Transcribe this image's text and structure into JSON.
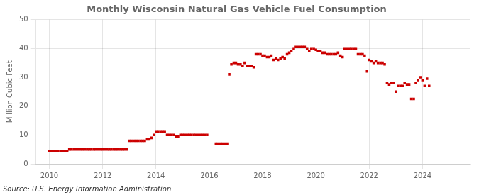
{
  "chart_data": {
    "type": "scatter",
    "title": "Monthly Wisconsin Natural Gas Vehicle Fuel Consumption",
    "ylabel": "Million Cubic Feet",
    "annotations": [
      "Source: U.S. Energy Information Administration"
    ],
    "color": "#CC0000",
    "marker": "square",
    "grid": true,
    "xlim": [
      2009.5,
      2025.8
    ],
    "xticks": [
      2010,
      2012,
      2014,
      2016,
      2018,
      2020,
      2022,
      2024
    ],
    "ylim": [
      0,
      50
    ],
    "yticks": [
      0,
      10,
      20,
      30,
      40,
      50
    ],
    "x": [
      2010.0,
      2010.08,
      2010.17,
      2010.25,
      2010.33,
      2010.42,
      2010.5,
      2010.58,
      2010.67,
      2010.75,
      2010.83,
      2010.92,
      2011.0,
      2011.08,
      2011.17,
      2011.25,
      2011.33,
      2011.42,
      2011.5,
      2011.58,
      2011.67,
      2011.75,
      2011.83,
      2011.92,
      2012.0,
      2012.08,
      2012.17,
      2012.25,
      2012.33,
      2012.42,
      2012.5,
      2012.58,
      2012.67,
      2012.75,
      2012.83,
      2012.92,
      2013.0,
      2013.08,
      2013.17,
      2013.25,
      2013.33,
      2013.42,
      2013.5,
      2013.58,
      2013.67,
      2013.75,
      2013.83,
      2013.92,
      2014.0,
      2014.08,
      2014.17,
      2014.25,
      2014.33,
      2014.42,
      2014.5,
      2014.58,
      2014.67,
      2014.75,
      2014.83,
      2014.92,
      2015.0,
      2015.08,
      2015.17,
      2015.25,
      2015.33,
      2015.42,
      2015.5,
      2015.58,
      2015.67,
      2015.75,
      2015.83,
      2015.92,
      2016.25,
      2016.33,
      2016.42,
      2016.5,
      2016.58,
      2016.67,
      2016.75,
      2016.83,
      2016.92,
      2017.0,
      2017.08,
      2017.17,
      2017.25,
      2017.33,
      2017.42,
      2017.5,
      2017.58,
      2017.67,
      2017.75,
      2017.83,
      2017.92,
      2018.0,
      2018.08,
      2018.17,
      2018.25,
      2018.33,
      2018.42,
      2018.5,
      2018.58,
      2018.67,
      2018.75,
      2018.83,
      2018.92,
      2019.0,
      2019.08,
      2019.17,
      2019.25,
      2019.33,
      2019.42,
      2019.5,
      2019.58,
      2019.67,
      2019.75,
      2019.83,
      2019.92,
      2020.0,
      2020.08,
      2020.17,
      2020.25,
      2020.33,
      2020.42,
      2020.5,
      2020.58,
      2020.67,
      2020.75,
      2020.83,
      2020.92,
      2021.0,
      2021.08,
      2021.17,
      2021.25,
      2021.33,
      2021.42,
      2021.5,
      2021.58,
      2021.67,
      2021.75,
      2021.83,
      2021.92,
      2022.0,
      2022.08,
      2022.17,
      2022.25,
      2022.33,
      2022.42,
      2022.5,
      2022.58,
      2022.67,
      2022.75,
      2022.83,
      2022.92,
      2023.0,
      2023.08,
      2023.17,
      2023.25,
      2023.33,
      2023.42,
      2023.5,
      2023.58,
      2023.67,
      2023.75,
      2023.83,
      2023.92,
      2024.0,
      2024.08,
      2024.17,
      2024.25
    ],
    "values": [
      4.5,
      4.5,
      4.5,
      4.5,
      4.5,
      4.5,
      4.5,
      4.5,
      4.5,
      5.0,
      5.0,
      5.0,
      5.0,
      5.0,
      5.0,
      5.0,
      5.0,
      5.0,
      5.0,
      5.0,
      5.0,
      5.0,
      5.0,
      5.0,
      5.0,
      5.0,
      5.0,
      5.0,
      5.0,
      5.0,
      5.0,
      5.0,
      5.0,
      5.0,
      5.0,
      5.0,
      8.0,
      8.0,
      8.0,
      8.0,
      8.0,
      8.0,
      8.0,
      8.0,
      8.5,
      8.5,
      9.0,
      10.0,
      11.0,
      11.0,
      11.0,
      11.0,
      11.0,
      10.0,
      10.0,
      10.0,
      10.0,
      9.5,
      9.5,
      10.0,
      10.0,
      10.0,
      10.0,
      10.0,
      10.0,
      10.0,
      10.0,
      10.0,
      10.0,
      10.0,
      10.0,
      10.0,
      7.0,
      7.0,
      7.0,
      7.0,
      7.0,
      7.0,
      31.0,
      34.5,
      35.0,
      35.0,
      34.5,
      34.5,
      34.0,
      35.0,
      34.0,
      34.0,
      34.0,
      33.5,
      38.0,
      38.0,
      38.0,
      37.5,
      37.5,
      37.0,
      37.0,
      37.5,
      36.0,
      36.5,
      36.0,
      36.5,
      37.0,
      36.5,
      38.0,
      38.5,
      39.0,
      40.0,
      40.5,
      40.5,
      40.5,
      40.5,
      40.5,
      40.0,
      39.0,
      40.0,
      40.0,
      39.5,
      39.0,
      39.0,
      38.5,
      38.5,
      38.0,
      38.0,
      38.0,
      38.0,
      38.0,
      38.5,
      37.5,
      37.0,
      40.0,
      40.0,
      40.0,
      40.0,
      40.0,
      40.0,
      38.0,
      38.0,
      38.0,
      37.5,
      32.0,
      36.0,
      35.5,
      35.0,
      35.5,
      35.0,
      35.0,
      35.0,
      34.5,
      28.0,
      27.5,
      28.0,
      28.0,
      25.0,
      27.0,
      27.0,
      27.0,
      28.0,
      27.5,
      27.5,
      22.5,
      22.5,
      28.0,
      29.0,
      30.0,
      29.0,
      27.0,
      29.5,
      27.0
    ]
  }
}
